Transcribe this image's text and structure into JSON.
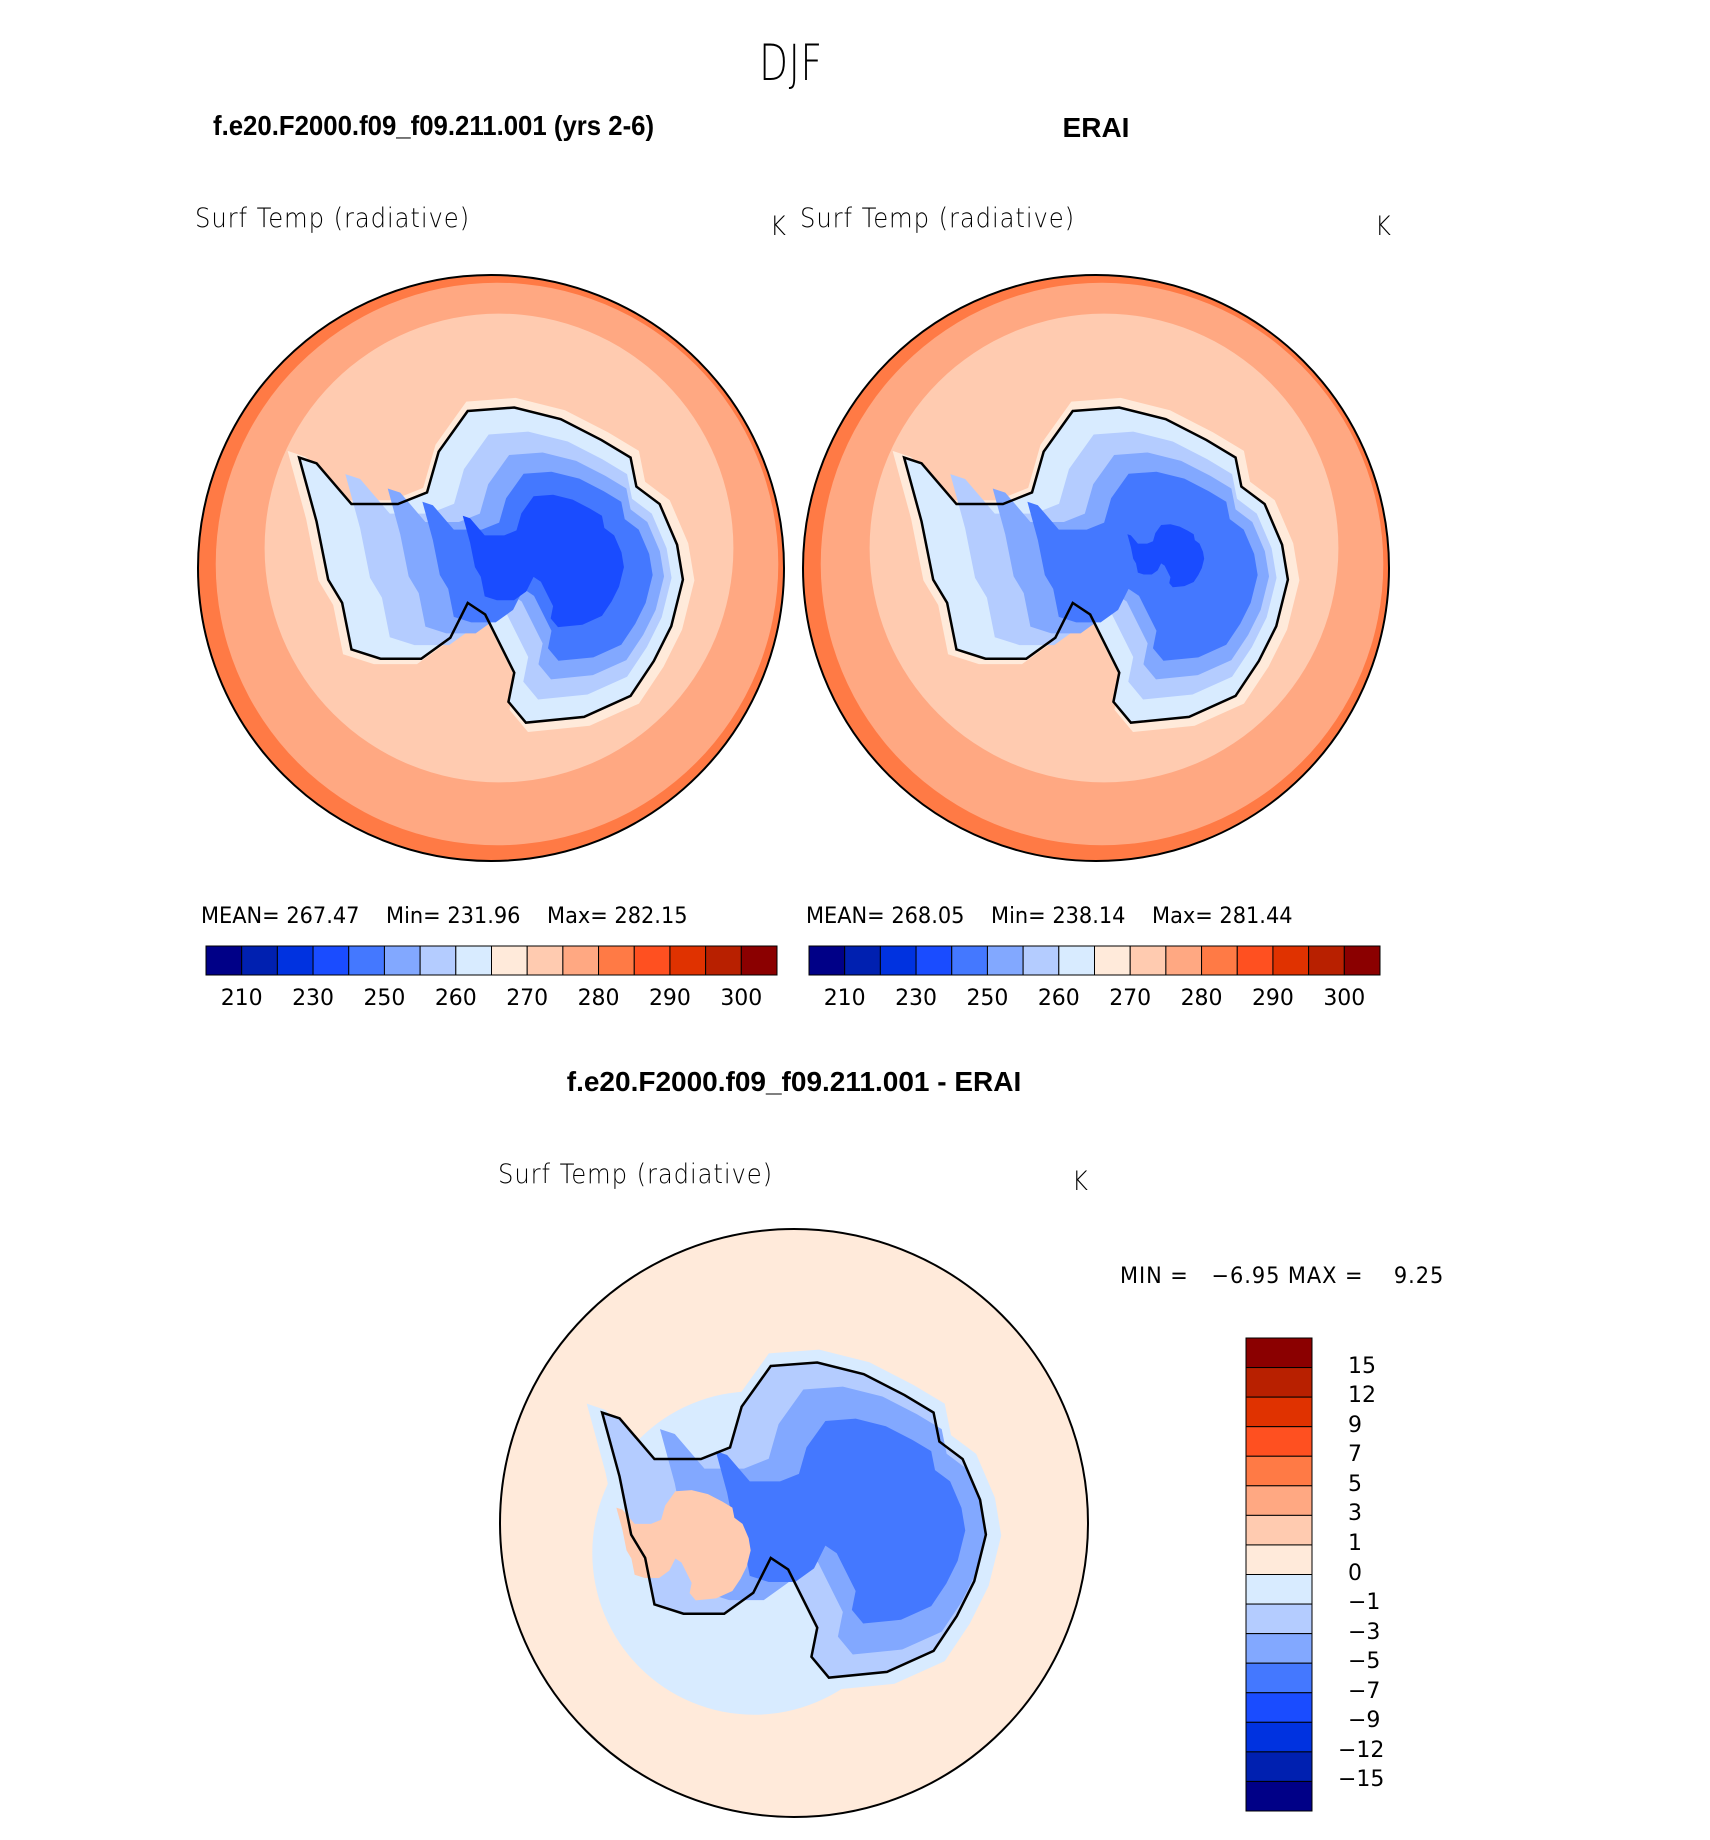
{
  "title": "DJF",
  "colors": [
    "#000087",
    "#0020B0",
    "#0032E0",
    "#1A4CFF",
    "#4478FF",
    "#82A8FF",
    "#B4CCFF",
    "#D8EBFF",
    "#FFEADA",
    "#FFCBB0",
    "#FFA882",
    "#FF7A45",
    "#FF5020",
    "#E03200",
    "#B82000",
    "#8B0000"
  ],
  "chart_data": [
    {
      "type": "heatmap",
      "projection": "south polar stereographic",
      "title": "f.e20.F2000.f09_f09.211.001 (yrs 2-6)",
      "variable": "Surf Temp (radiative)",
      "units": "K",
      "stats": {
        "mean_label": "MEAN=",
        "mean": "267.47",
        "min_label": "Min=",
        "min": "231.96",
        "max_label": "Max=",
        "max": "282.15"
      },
      "colorbar": {
        "orientation": "horizontal",
        "levels": [
          "210",
          "230",
          "250",
          "260",
          "270",
          "280",
          "290",
          "300"
        ]
      }
    },
    {
      "type": "heatmap",
      "projection": "south polar stereographic",
      "title": "ERAI",
      "variable": "Surf Temp (radiative)",
      "units": "K",
      "stats": {
        "mean_label": "MEAN=",
        "mean": "268.05",
        "min_label": "Min=",
        "min": "238.14",
        "max_label": "Max=",
        "max": "281.44"
      },
      "colorbar": {
        "orientation": "horizontal",
        "levels": [
          "210",
          "230",
          "250",
          "260",
          "270",
          "280",
          "290",
          "300"
        ]
      }
    },
    {
      "type": "heatmap",
      "projection": "south polar stereographic",
      "title": "f.e20.F2000.f09_f09.211.001 - ERAI",
      "variable": "Surf Temp (radiative)",
      "units": "K",
      "stats": {
        "min_label": "MIN =",
        "min": "−6.95",
        "max_label": "MAX =",
        "max": "9.25"
      },
      "colorbar": {
        "orientation": "vertical",
        "levels": [
          "15",
          "12",
          "9",
          "7",
          "5",
          "3",
          "1",
          "0",
          "−1",
          "−3",
          "−5",
          "−7",
          "−9",
          "−12",
          "−15"
        ]
      }
    }
  ]
}
